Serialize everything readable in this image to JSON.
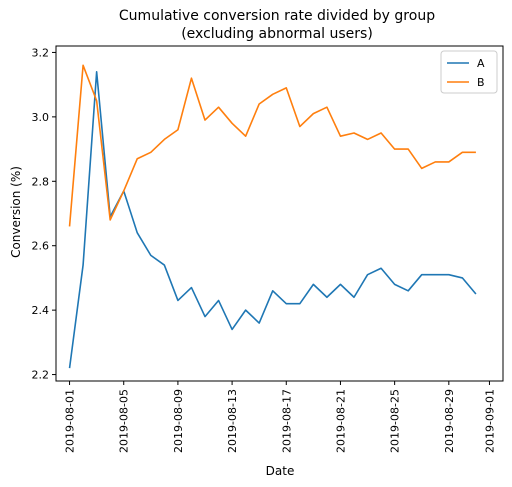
{
  "chart_data": {
    "type": "line",
    "title": "Cumulative conversion rate divided by group",
    "subtitle": "(excluding abnormal users)",
    "xlabel": "Date",
    "ylabel": "Conversion (%)",
    "x": [
      "2019-08-01",
      "2019-08-02",
      "2019-08-03",
      "2019-08-04",
      "2019-08-05",
      "2019-08-06",
      "2019-08-07",
      "2019-08-08",
      "2019-08-09",
      "2019-08-10",
      "2019-08-11",
      "2019-08-12",
      "2019-08-13",
      "2019-08-14",
      "2019-08-15",
      "2019-08-16",
      "2019-08-17",
      "2019-08-18",
      "2019-08-19",
      "2019-08-20",
      "2019-08-21",
      "2019-08-22",
      "2019-08-23",
      "2019-08-24",
      "2019-08-25",
      "2019-08-26",
      "2019-08-27",
      "2019-08-28",
      "2019-08-29",
      "2019-08-30",
      "2019-08-31"
    ],
    "series": [
      {
        "name": "A",
        "color": "#1f77b4",
        "values": [
          2.22,
          2.54,
          3.14,
          2.69,
          2.77,
          2.64,
          2.57,
          2.54,
          2.43,
          2.47,
          2.38,
          2.43,
          2.34,
          2.4,
          2.36,
          2.46,
          2.42,
          2.42,
          2.48,
          2.44,
          2.48,
          2.44,
          2.51,
          2.53,
          2.48,
          2.46,
          2.51,
          2.51,
          2.51,
          2.5,
          2.45
        ]
      },
      {
        "name": "B",
        "color": "#ff7f0e",
        "values": [
          2.66,
          3.16,
          3.05,
          2.68,
          2.77,
          2.87,
          2.89,
          2.93,
          2.96,
          3.12,
          2.99,
          3.03,
          2.98,
          2.94,
          3.04,
          3.07,
          3.09,
          2.97,
          3.01,
          3.03,
          2.94,
          2.95,
          2.93,
          2.95,
          2.9,
          2.9,
          2.84,
          2.86,
          2.86,
          2.89,
          2.89
        ]
      }
    ],
    "xticks": [
      "2019-08-01",
      "2019-08-05",
      "2019-08-09",
      "2019-08-13",
      "2019-08-17",
      "2019-08-21",
      "2019-08-25",
      "2019-08-29",
      "2019-09-01"
    ],
    "yticks": [
      "2.2",
      "2.4",
      "2.6",
      "2.8",
      "3.0",
      "3.2"
    ],
    "xlim": [
      "2019-07-31",
      "2019-09-02"
    ],
    "ylim": [
      2.18,
      3.22
    ],
    "legend": "top-right",
    "grid": false
  }
}
